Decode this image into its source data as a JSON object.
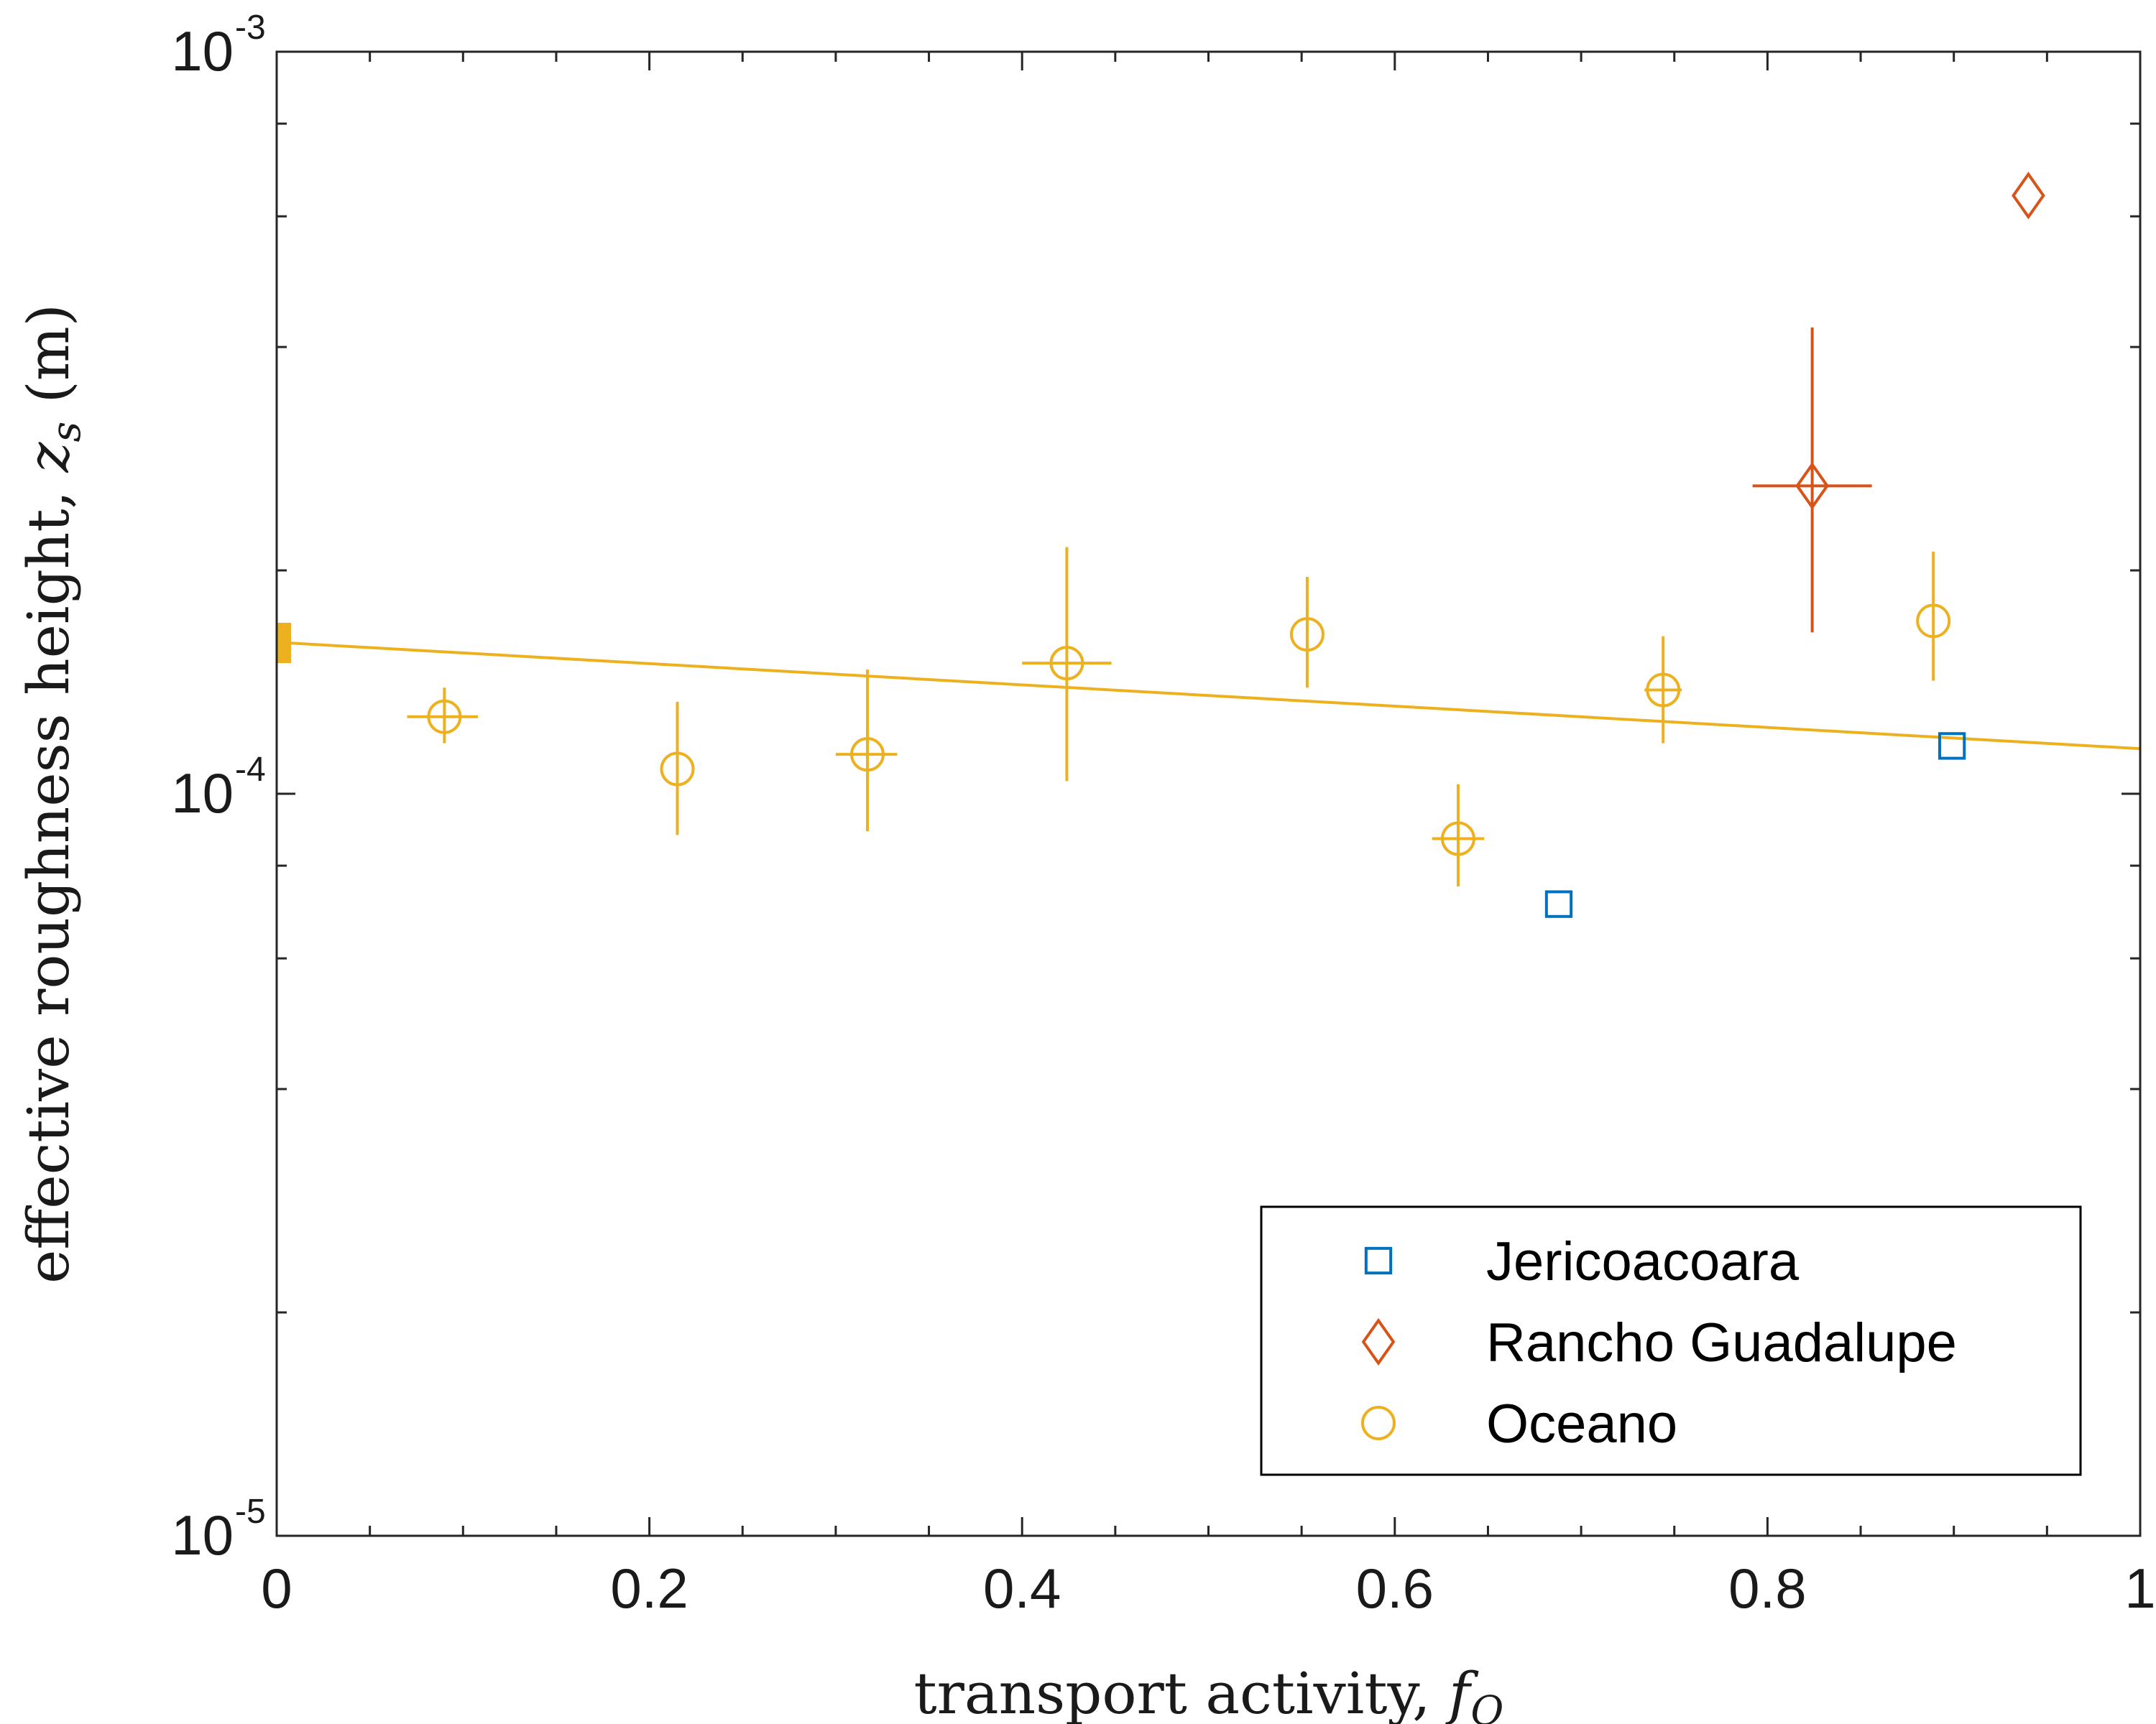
{
  "chart_data": {
    "type": "scatter",
    "title": "",
    "xlabel": "transport activity, ",
    "xlabel_symbol": "f",
    "xlabel_subscript": "Q",
    "ylabel": "effective roughness height, ",
    "ylabel_symbol": "z",
    "ylabel_subscript": "s",
    "ylabel_unit": " (m)",
    "xlim": [
      0,
      1
    ],
    "ylim": [
      1e-05,
      0.001
    ],
    "y_scale": "log",
    "grid": false,
    "legend_position": "bottom-right",
    "x_ticks": [
      "0",
      "0.2",
      "0.4",
      "0.6",
      "0.8",
      "1"
    ],
    "x_tick_values": [
      0,
      0.2,
      0.4,
      0.6,
      0.8,
      1
    ],
    "y_ticks": [
      {
        "base": "10",
        "exp": "-5",
        "value": 1e-05
      },
      {
        "base": "10",
        "exp": "-4",
        "value": 0.0001
      },
      {
        "base": "10",
        "exp": "-3",
        "value": 0.001
      }
    ],
    "series": [
      {
        "name": "Jericoacoara",
        "color": "#0072BD",
        "marker": "square",
        "points": [
          {
            "x": 0.688,
            "y": 7.1e-05
          },
          {
            "x": 0.899,
            "y": 0.000116
          }
        ]
      },
      {
        "name": "Rancho Guadalupe",
        "color": "#D95319",
        "marker": "diamond",
        "points": [
          {
            "x": 0.824,
            "y": 0.00026,
            "xerr": [
              0.792,
              0.856
            ],
            "yerr": [
              0.000165,
              0.000425
            ]
          },
          {
            "x": 0.94,
            "y": 0.00064
          }
        ]
      },
      {
        "name": "Oceano",
        "color": "#EDB120",
        "marker": "circle",
        "points": [
          {
            "x": 0.09,
            "y": 0.000127,
            "xerr": [
              0.07,
              0.108
            ],
            "yerr": [
              0.000117,
              0.000139
            ]
          },
          {
            "x": 0.215,
            "y": 0.000108,
            "yerr": [
              8.8e-05,
              0.000133
            ]
          },
          {
            "x": 0.317,
            "y": 0.000113,
            "xerr": [
              0.3,
              0.333
            ],
            "yerr": [
              8.9e-05,
              0.000147
            ]
          },
          {
            "x": 0.424,
            "y": 0.00015,
            "xerr": [
              0.4,
              0.448
            ],
            "yerr": [
              0.000104,
              0.000215
            ]
          },
          {
            "x": 0.553,
            "y": 0.000164,
            "yerr": [
              0.000139,
              0.000196
            ]
          },
          {
            "x": 0.634,
            "y": 8.7e-05,
            "xerr": [
              0.62,
              0.648
            ],
            "yerr": [
              7.5e-05,
              0.000103
            ]
          },
          {
            "x": 0.744,
            "y": 0.000138,
            "xerr": [
              0.734,
              0.754
            ],
            "yerr": [
              0.000117,
              0.000163
            ]
          },
          {
            "x": 0.889,
            "y": 0.000171,
            "yerr": [
              0.000142,
              0.000212
            ]
          }
        ]
      }
    ],
    "fit": {
      "color": "#EDB120",
      "x": [
        0,
        1
      ],
      "y": [
        0.00016,
        0.000115
      ],
      "intercept_marker": {
        "x": 0,
        "y_range": [
          0.00015,
          0.00017
        ]
      }
    }
  }
}
